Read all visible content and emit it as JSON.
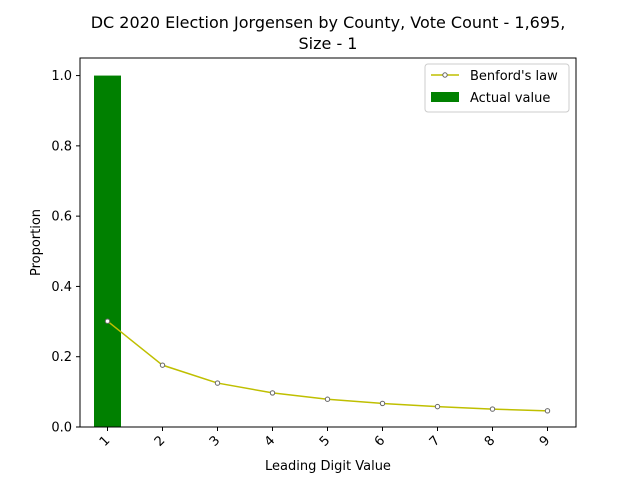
{
  "chart_data": {
    "type": "bar",
    "title_line1": "DC 2020 Election Jorgensen by County,  Vote Count - 1,695,",
    "title_line2": "Size - 1",
    "xlabel": "Leading Digit Value",
    "ylabel": "Proportion",
    "categories": [
      "1",
      "2",
      "3",
      "4",
      "5",
      "6",
      "7",
      "8",
      "9"
    ],
    "ylim": [
      0,
      1.05
    ],
    "yticks": [
      "0.0",
      "0.2",
      "0.4",
      "0.6",
      "0.8",
      "1.0"
    ],
    "legend_position": "top-right",
    "series": [
      {
        "name": "Benford's law",
        "kind": "line",
        "color": "#bfbf00",
        "values": [
          0.301,
          0.176,
          0.125,
          0.097,
          0.079,
          0.067,
          0.058,
          0.051,
          0.046
        ]
      },
      {
        "name": "Actual value",
        "kind": "bar",
        "color": "#008000",
        "values": [
          1.0,
          0,
          0,
          0,
          0,
          0,
          0,
          0,
          0
        ]
      }
    ]
  }
}
